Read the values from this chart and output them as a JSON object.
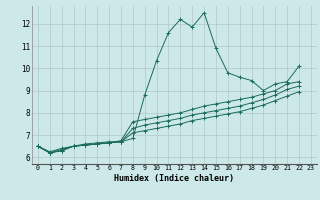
{
  "xlabel": "Humidex (Indice chaleur)",
  "bg_color": "#cce8e8",
  "grid_color": "#b0c8c8",
  "line_color": "#1a6b5a",
  "xlim": [
    -0.5,
    23.5
  ],
  "ylim": [
    5.7,
    12.8
  ],
  "xticks": [
    0,
    1,
    2,
    3,
    4,
    5,
    6,
    7,
    8,
    9,
    10,
    11,
    12,
    13,
    14,
    15,
    16,
    17,
    18,
    19,
    20,
    21,
    22,
    23
  ],
  "yticks": [
    6,
    7,
    8,
    9,
    10,
    11,
    12
  ],
  "series": [
    [
      6.5,
      6.2,
      6.3,
      6.5,
      6.6,
      6.65,
      6.7,
      6.7,
      6.85,
      8.8,
      10.35,
      11.6,
      12.2,
      11.85,
      12.5,
      10.9,
      9.8,
      9.6,
      9.45,
      9.0,
      9.3,
      9.4,
      10.1
    ],
    [
      6.5,
      6.2,
      6.3,
      6.5,
      6.55,
      6.6,
      6.65,
      6.75,
      7.6,
      7.7,
      7.8,
      7.9,
      8.0,
      8.15,
      8.3,
      8.4,
      8.5,
      8.6,
      8.7,
      8.85,
      9.0,
      9.3,
      9.4
    ],
    [
      6.5,
      6.25,
      6.4,
      6.5,
      6.55,
      6.6,
      6.65,
      6.7,
      7.3,
      7.45,
      7.55,
      7.65,
      7.75,
      7.9,
      8.0,
      8.1,
      8.2,
      8.3,
      8.45,
      8.6,
      8.8,
      9.05,
      9.2
    ],
    [
      6.5,
      6.2,
      6.35,
      6.5,
      6.55,
      6.6,
      6.65,
      6.7,
      7.1,
      7.2,
      7.3,
      7.4,
      7.5,
      7.65,
      7.75,
      7.85,
      7.95,
      8.05,
      8.2,
      8.35,
      8.55,
      8.75,
      8.95
    ]
  ]
}
